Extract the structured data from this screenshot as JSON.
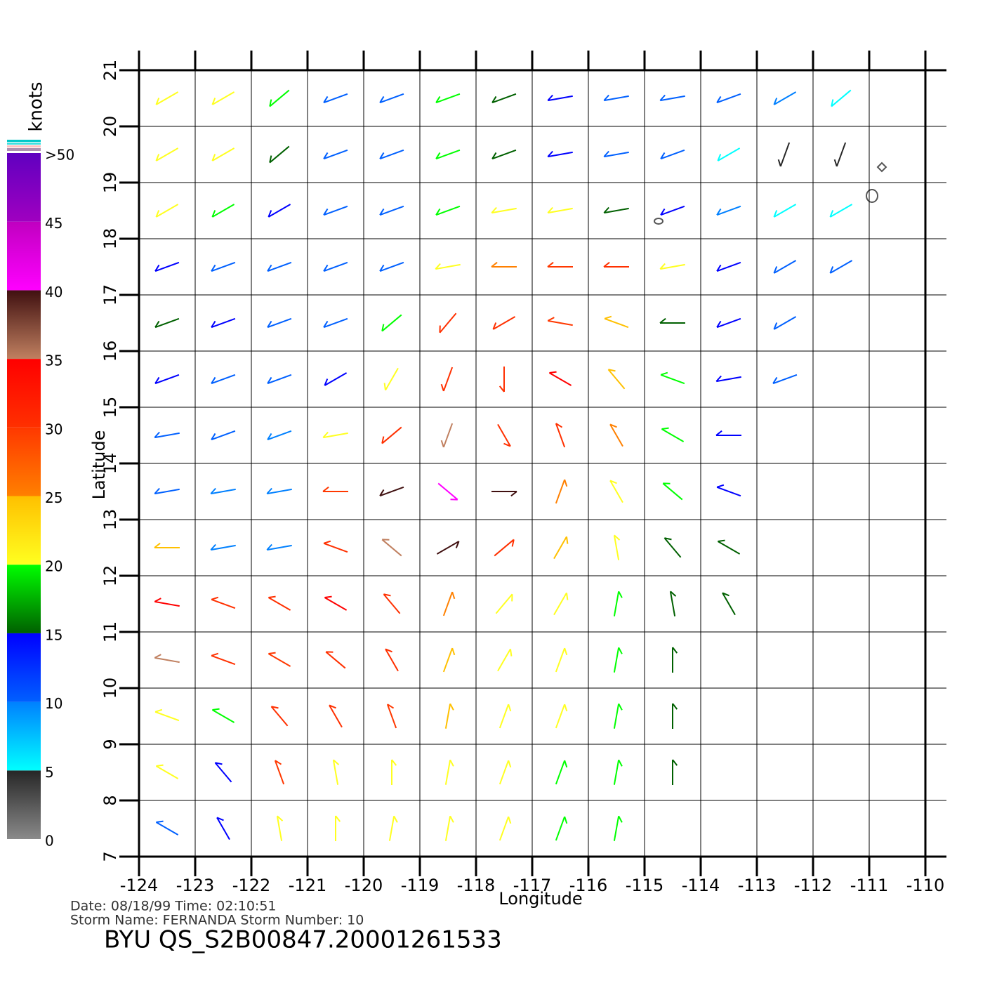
{
  "chart_data": {
    "type": "wind",
    "xlabel": "Longitude",
    "ylabel": "Latitude",
    "xlim": [
      -124,
      -110
    ],
    "ylim": [
      7,
      21
    ],
    "xticks": [
      -124,
      -123,
      -122,
      -121,
      -120,
      -119,
      -118,
      -117,
      -116,
      -115,
      -114,
      -113,
      -112,
      -111,
      -110
    ],
    "yticks": [
      7,
      8,
      9,
      10,
      11,
      12,
      13,
      14,
      15,
      16,
      17,
      18,
      19,
      20,
      21
    ],
    "grid": true,
    "colorbar": {
      "label": "knots",
      "lim": [
        0,
        50
      ],
      "ticks": [
        0,
        5,
        10,
        15,
        20,
        25,
        30,
        35,
        40,
        45,
        {
          "value": 50,
          "label": ">50"
        }
      ],
      "colors": [
        [
          "#8a8a8a",
          "#262626"
        ],
        [
          "#00ffff",
          "#0080ff"
        ],
        [
          "#0060ff",
          "#0000ff"
        ],
        [
          "#006000",
          "#00ff00"
        ],
        [
          "#ffff20",
          "#ffc000"
        ],
        [
          "#ff8000",
          "#ff3800"
        ],
        [
          "#ff3000",
          "#ff0000"
        ],
        [
          "#c08060",
          "#401010"
        ],
        [
          "#ff00ff",
          "#c000c0"
        ],
        [
          "#a000c0",
          "#6000c0"
        ]
      ]
    },
    "wind": {
      "lat": [
        20.5,
        19.5,
        18.5,
        17.5,
        16.5,
        15.5,
        14.5,
        13.5,
        12.5,
        11.5,
        10.5,
        9.5,
        8.5,
        7.5
      ],
      "lon": [
        -123.5,
        -122.5,
        -121.5,
        -120.5,
        -119.5,
        -118.5,
        -117.5,
        -116.5,
        -115.5,
        -114.5,
        -113.5,
        -112.5,
        -111.5
      ],
      "speed": [
        [
          22,
          20,
          18,
          12,
          12,
          18,
          17,
          13,
          12,
          11,
          10,
          8,
          7
        ],
        [
          22,
          20,
          16,
          12,
          12,
          18,
          17,
          14,
          12,
          11,
          6,
          4,
          4
        ],
        [
          20,
          18,
          13,
          12,
          12,
          18,
          22,
          20,
          16,
          13,
          9,
          7,
          6
        ],
        [
          13,
          12,
          12,
          11,
          12,
          20,
          25,
          28,
          30,
          22,
          14,
          12,
          11
        ],
        [
          15,
          13,
          12,
          12,
          18,
          30,
          32,
          28,
          24,
          16,
          13,
          12,
          null
        ],
        [
          14,
          12,
          11,
          14,
          22,
          32,
          30,
          33,
          24,
          18,
          14,
          12,
          null
        ],
        [
          12,
          11,
          9,
          20,
          30,
          35,
          32,
          30,
          25,
          18,
          14,
          null,
          null
        ],
        [
          10,
          8,
          8,
          28,
          38,
          42,
          38,
          27,
          22,
          18,
          14,
          null,
          null
        ],
        [
          24,
          8,
          8,
          30,
          35,
          38,
          32,
          24,
          20,
          17,
          15,
          null,
          null
        ],
        [
          33,
          32,
          30,
          33,
          30,
          26,
          22,
          20,
          18,
          17,
          16,
          null,
          null
        ],
        [
          35,
          30,
          28,
          31,
          30,
          24,
          22,
          20,
          18,
          17,
          null,
          null,
          null
        ],
        [
          22,
          18,
          30,
          32,
          28,
          24,
          22,
          20,
          18,
          17,
          null,
          null,
          null
        ],
        [
          20,
          14,
          28,
          22,
          22,
          22,
          20,
          19,
          18,
          17,
          null,
          null,
          null
        ],
        [
          12,
          14,
          22,
          22,
          22,
          22,
          20,
          19,
          18,
          null,
          null,
          null,
          null
        ]
      ],
      "direction": [
        [
          240,
          240,
          230,
          250,
          250,
          250,
          250,
          260,
          260,
          260,
          250,
          240,
          230
        ],
        [
          240,
          240,
          230,
          250,
          250,
          250,
          250,
          260,
          260,
          250,
          240,
          200,
          200
        ],
        [
          240,
          240,
          240,
          250,
          250,
          250,
          260,
          260,
          260,
          250,
          250,
          240,
          240
        ],
        [
          250,
          250,
          250,
          250,
          250,
          260,
          270,
          270,
          270,
          260,
          250,
          240,
          240
        ],
        [
          250,
          250,
          250,
          250,
          230,
          220,
          240,
          280,
          290,
          270,
          250,
          240,
          null
        ],
        [
          250,
          250,
          250,
          240,
          210,
          200,
          180,
          300,
          320,
          290,
          260,
          250,
          null
        ],
        [
          260,
          250,
          250,
          260,
          230,
          200,
          150,
          340,
          330,
          300,
          270,
          null,
          null
        ],
        [
          260,
          260,
          260,
          270,
          250,
          130,
          90,
          20,
          330,
          310,
          290,
          null,
          null
        ],
        [
          270,
          260,
          260,
          290,
          310,
          60,
          50,
          30,
          350,
          320,
          300,
          null,
          null
        ],
        [
          280,
          290,
          300,
          300,
          320,
          20,
          40,
          30,
          10,
          350,
          330,
          null,
          null
        ],
        [
          280,
          290,
          300,
          310,
          330,
          20,
          30,
          20,
          10,
          0,
          null,
          null,
          null
        ],
        [
          290,
          300,
          320,
          330,
          340,
          10,
          20,
          20,
          10,
          0,
          null,
          null,
          null
        ],
        [
          300,
          320,
          340,
          350,
          0,
          10,
          20,
          20,
          10,
          0,
          null,
          null,
          null
        ],
        [
          300,
          330,
          350,
          0,
          10,
          10,
          20,
          20,
          10,
          null,
          null,
          null,
          null
        ]
      ]
    },
    "info": {
      "line1": "Date:  08/18/99   Time:  02:10:51",
      "line2": "Storm  Name:  FERNANDA    Storm  Number:  10",
      "product": "BYU  QS_S2B00847.20001261533"
    }
  }
}
